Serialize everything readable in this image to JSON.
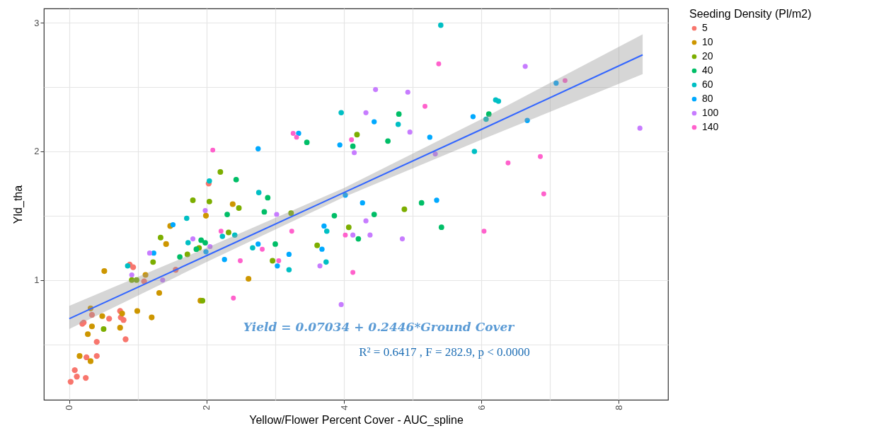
{
  "chart_data": {
    "type": "scatter",
    "xlabel": "Yellow/Flower Percent Cover - AUC_spline",
    "ylabel": "Yld_tha",
    "legend_title": "Seeding Density (Pl/m2)",
    "legend": "right",
    "grid": true,
    "marker": "circle",
    "xlim": [
      -0.37,
      8.72
    ],
    "ylim": [
      0.07,
      3.11
    ],
    "xticks": [
      0,
      {
        "value": 1,
        "label": null
      },
      2,
      {
        "value": 3,
        "label": null
      },
      4,
      {
        "value": 5,
        "label": null
      },
      6,
      {
        "value": 7,
        "label": null
      },
      8
    ],
    "yticks": [
      {
        "value": 0.5,
        "label": null
      },
      1,
      {
        "value": 1.5,
        "label": null
      },
      2,
      {
        "value": 2.5,
        "label": null
      },
      3
    ],
    "annotations": [
      "Yield = 0.07034 + 0.2446*Ground Cover",
      "R² = 0.6417 , F = 282.9, p < 0.0000"
    ],
    "series": [
      {
        "name": "5",
        "color": "#f8766d",
        "x": [
          0.02,
          0.08,
          0.11,
          0.24,
          0.25,
          0.4,
          0.4,
          0.19,
          0.21,
          0.33,
          0.58,
          0.74,
          0.75,
          0.79,
          0.82,
          0.88,
          0.93,
          1.09,
          1.55,
          2.03
        ],
        "values": [
          0.21,
          0.3,
          0.25,
          0.24,
          0.4,
          0.52,
          0.41,
          0.66,
          0.67,
          0.73,
          0.7,
          0.76,
          0.71,
          0.69,
          0.54,
          1.12,
          1.1,
          0.99,
          1.08,
          1.75
        ]
      },
      {
        "name": "10",
        "color": "#cd9600",
        "x": [
          0.15,
          0.31,
          0.27,
          0.33,
          0.31,
          0.48,
          0.51,
          0.77,
          0.74,
          0.99,
          1.2,
          1.11,
          1.31,
          1.41,
          1.47,
          1.99,
          2.38,
          1.91,
          2.61
        ],
        "values": [
          0.41,
          0.37,
          0.58,
          0.64,
          0.78,
          0.72,
          1.07,
          0.74,
          0.63,
          0.76,
          0.71,
          1.04,
          0.9,
          1.28,
          1.42,
          1.5,
          1.59,
          0.84,
          1.01
        ]
      },
      {
        "name": "20",
        "color": "#7cae00",
        "x": [
          0.5,
          0.91,
          0.98,
          1.22,
          1.33,
          1.72,
          1.89,
          1.8,
          2.04,
          1.94,
          2.32,
          2.47,
          2.2,
          2.96,
          3.23,
          3.61,
          4.07,
          4.88,
          4.19
        ],
        "values": [
          0.62,
          1.0,
          1.0,
          1.14,
          1.33,
          1.2,
          1.25,
          1.62,
          1.61,
          0.84,
          1.37,
          1.56,
          1.84,
          1.15,
          1.52,
          1.27,
          1.41,
          1.55,
          2.13
        ]
      },
      {
        "name": "40",
        "color": "#00be67",
        "x": [
          1.61,
          1.85,
          1.92,
          1.98,
          2.3,
          2.43,
          2.84,
          3.0,
          3.86,
          4.21,
          4.44,
          5.13,
          5.42,
          2.89,
          3.46,
          4.13,
          4.8,
          4.64,
          6.11
        ],
        "values": [
          1.18,
          1.24,
          1.31,
          1.29,
          1.51,
          1.78,
          1.53,
          1.28,
          1.5,
          1.32,
          1.51,
          1.6,
          1.41,
          1.64,
          2.07,
          2.04,
          2.29,
          2.08,
          2.29
        ]
      },
      {
        "name": "60",
        "color": "#00bfc4",
        "x": [
          0.85,
          1.71,
          1.73,
          2.23,
          2.41,
          2.04,
          2.67,
          3.75,
          3.2,
          3.74,
          2.76,
          3.96,
          4.79,
          5.41,
          6.21,
          6.25,
          5.9,
          6.07
        ],
        "values": [
          1.11,
          1.48,
          1.29,
          1.34,
          1.35,
          1.77,
          1.25,
          1.38,
          1.08,
          1.14,
          1.68,
          2.3,
          2.21,
          2.98,
          2.4,
          2.39,
          2.0,
          2.25
        ]
      },
      {
        "name": "80",
        "color": "#00a9ff",
        "x": [
          1.51,
          1.23,
          1.99,
          2.26,
          2.75,
          3.2,
          3.03,
          3.68,
          3.71,
          4.27,
          5.35,
          2.75,
          3.34,
          3.94,
          4.44,
          5.25,
          4.02,
          5.88,
          6.67,
          7.09
        ],
        "values": [
          1.43,
          1.21,
          1.22,
          1.16,
          1.28,
          1.2,
          1.11,
          1.24,
          1.42,
          1.6,
          1.62,
          2.02,
          2.14,
          2.05,
          2.23,
          2.11,
          1.66,
          2.27,
          2.24,
          2.53
        ]
      },
      {
        "name": "100",
        "color": "#c77cff",
        "x": [
          1.17,
          0.91,
          1.8,
          1.98,
          2.05,
          1.36,
          3.02,
          3.65,
          3.96,
          4.32,
          4.13,
          4.38,
          4.85,
          4.32,
          4.46,
          4.93,
          4.96,
          4.15,
          5.33,
          6.64,
          8.31
        ],
        "values": [
          1.21,
          1.04,
          1.32,
          1.54,
          1.26,
          1.0,
          1.51,
          1.11,
          0.81,
          1.46,
          1.35,
          1.35,
          1.32,
          2.3,
          2.48,
          2.46,
          2.15,
          1.99,
          1.98,
          2.66,
          2.18
        ]
      },
      {
        "name": "140",
        "color": "#ff61cc",
        "x": [
          2.21,
          2.49,
          2.39,
          3.24,
          2.81,
          3.05,
          4.02,
          4.13,
          2.09,
          3.26,
          3.31,
          4.11,
          5.18,
          5.38,
          7.22,
          6.39,
          6.86,
          6.91,
          6.04
        ],
        "values": [
          1.38,
          1.15,
          0.86,
          1.38,
          1.24,
          1.15,
          1.35,
          1.06,
          2.01,
          2.14,
          2.11,
          2.09,
          2.35,
          2.68,
          2.55,
          1.91,
          1.96,
          1.67,
          1.38
        ]
      },
      {
        "type": "line",
        "marker": "none",
        "color": "#3366ff",
        "x": [
          0,
          2,
          4,
          6,
          8.35
        ],
        "values": [
          0.7,
          1.19,
          1.68,
          2.17,
          2.75
        ],
        "lower": [
          0.62,
          1.14,
          1.645,
          2.09,
          2.6
        ],
        "upper": [
          0.8,
          1.25,
          1.715,
          2.25,
          2.91
        ]
      }
    ]
  }
}
